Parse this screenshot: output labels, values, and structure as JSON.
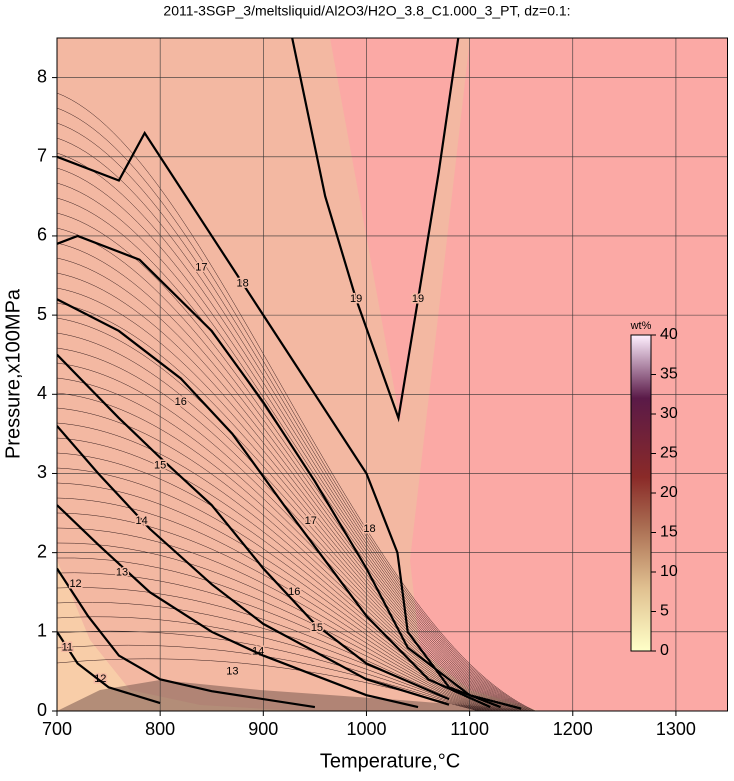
{
  "chart_data": {
    "type": "contour",
    "title": "2011-3SGP_3/meltsliquid/Al2O3/H2O_3.8_C1.000_3_PT, dz=0.1:",
    "xlabel": "Temperature,°C",
    "ylabel": "Pressure,x100MPa",
    "xlim": [
      700,
      1350
    ],
    "ylim": [
      0,
      8.5
    ],
    "xticks": [
      700,
      800,
      900,
      1000,
      1100,
      1200,
      1300
    ],
    "yticks": [
      0,
      1,
      2,
      3,
      4,
      5,
      6,
      7,
      8
    ],
    "grid": true,
    "colorbar": {
      "label": "wt%",
      "lim": [
        0,
        40
      ],
      "ticks": [
        0,
        5,
        10,
        15,
        20,
        25,
        30,
        35,
        40
      ]
    },
    "contours": [
      {
        "level": 19,
        "x": [
          928,
          960,
          990,
          1031,
          1050,
          1070,
          1089
        ],
        "y": [
          8.5,
          6.5,
          5.2,
          3.7,
          5.2,
          6.8,
          8.5
        ],
        "label_at": [
          [
            990,
            5.2
          ],
          [
            1050,
            5.2
          ]
        ]
      },
      {
        "level": 18,
        "x": [
          700,
          760,
          785,
          850,
          900,
          950,
          1000,
          1030,
          1040,
          1080,
          1130
        ],
        "y": [
          7.0,
          6.7,
          7.3,
          6.0,
          5.0,
          4.0,
          3.0,
          2.0,
          1.0,
          0.3,
          0.05
        ],
        "label_at": [
          [
            880,
            5.4
          ],
          [
            1003,
            2.3
          ]
        ]
      },
      {
        "level": 17,
        "x": [
          700,
          720,
          780,
          850,
          900,
          950,
          1000,
          1040,
          1100,
          1150
        ],
        "y": [
          5.9,
          6.0,
          5.7,
          4.8,
          3.9,
          2.9,
          1.8,
          0.8,
          0.2,
          0.03
        ],
        "label_at": [
          [
            840,
            5.6
          ],
          [
            946,
            2.4
          ]
        ]
      },
      {
        "level": 16,
        "x": [
          700,
          760,
          820,
          870,
          920,
          960,
          1000,
          1060,
          1120
        ],
        "y": [
          5.2,
          4.8,
          4.2,
          3.5,
          2.6,
          1.9,
          1.2,
          0.4,
          0.05
        ],
        "label_at": [
          [
            820,
            3.9
          ],
          [
            930,
            1.5
          ]
        ]
      },
      {
        "level": 15,
        "x": [
          700,
          760,
          800,
          850,
          900,
          950,
          1000,
          1080
        ],
        "y": [
          4.5,
          3.7,
          3.2,
          2.6,
          1.8,
          1.1,
          0.6,
          0.15
        ],
        "label_at": [
          [
            800,
            3.1
          ],
          [
            952,
            1.05
          ]
        ]
      },
      {
        "level": 14,
        "x": [
          700,
          740,
          790,
          850,
          900,
          1000,
          1080
        ],
        "y": [
          3.6,
          3.0,
          2.3,
          1.6,
          1.1,
          0.4,
          0.08
        ],
        "label_at": [
          [
            782,
            2.4
          ],
          [
            895,
            0.75
          ]
        ]
      },
      {
        "level": 13,
        "x": [
          700,
          740,
          790,
          850,
          900,
          1000,
          1050
        ],
        "y": [
          2.6,
          2.1,
          1.5,
          1.0,
          0.7,
          0.2,
          0.05
        ],
        "label_at": [
          [
            763,
            1.75
          ],
          [
            870,
            0.5
          ]
        ]
      },
      {
        "level": 12,
        "x": [
          700,
          730,
          760,
          800,
          850,
          950
        ],
        "y": [
          1.8,
          1.2,
          0.7,
          0.4,
          0.25,
          0.05
        ],
        "label_at": [
          [
            718,
            1.6
          ],
          [
            742,
            0.4
          ]
        ]
      },
      {
        "level": 11,
        "x": [
          700,
          720,
          750,
          800
        ],
        "y": [
          1.0,
          0.6,
          0.3,
          0.1
        ],
        "label_at": [
          [
            710,
            0.8
          ]
        ]
      }
    ]
  }
}
